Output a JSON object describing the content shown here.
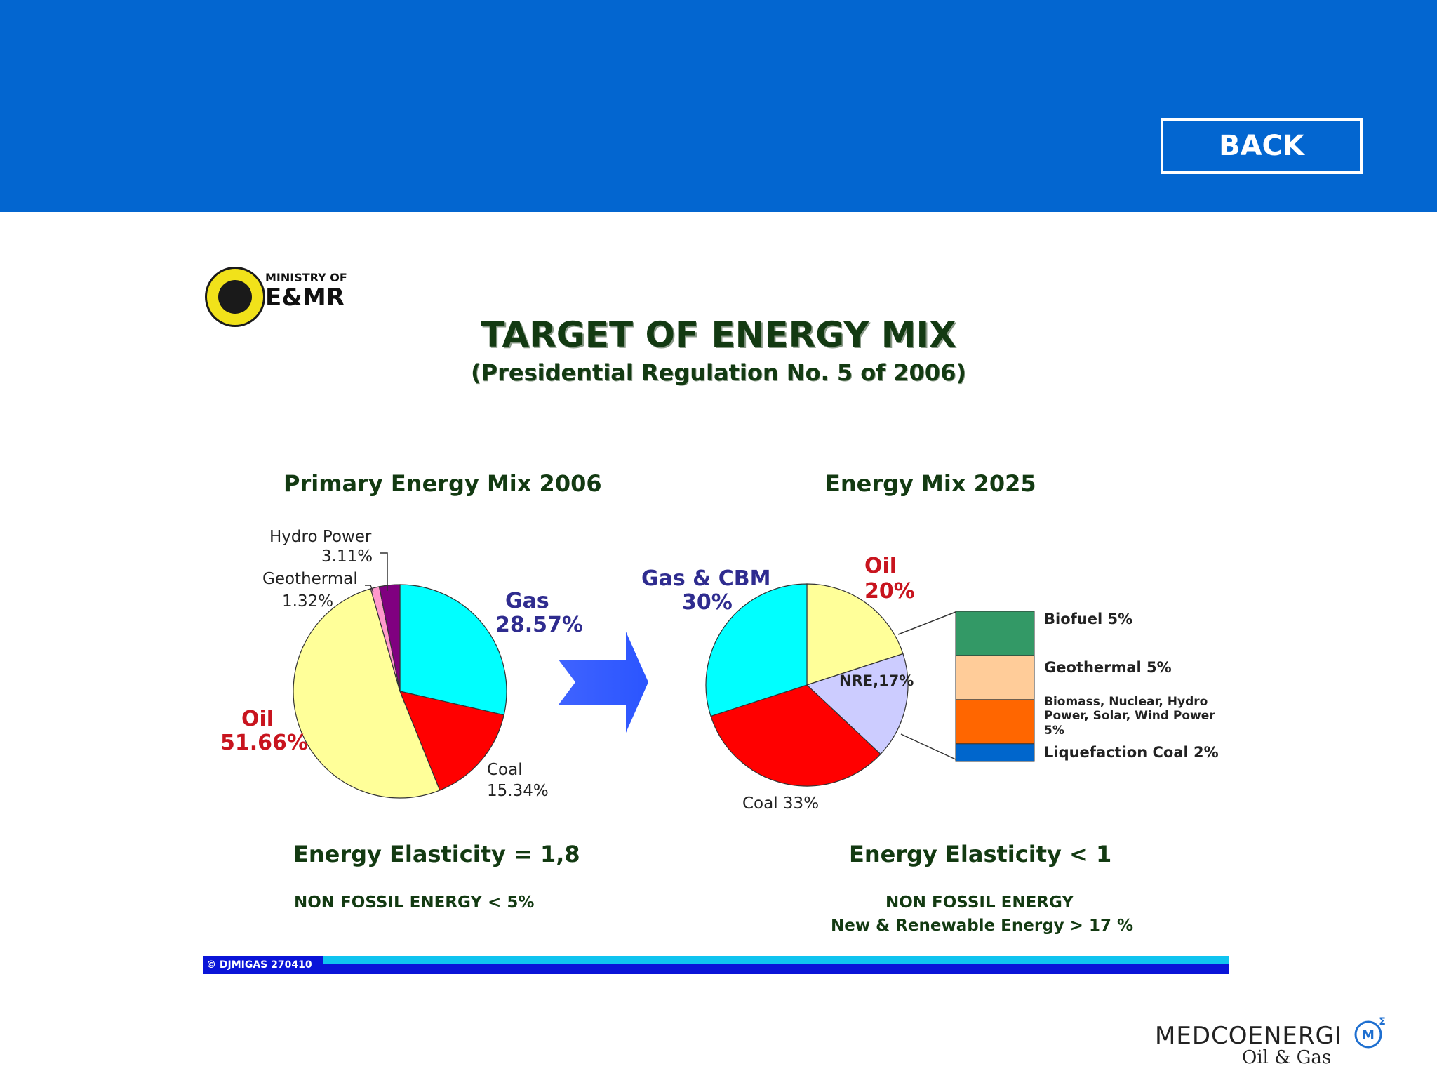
{
  "header": {
    "back_label": "BACK"
  },
  "logo": {
    "line1": "MINISTRY OF",
    "line2": "E&MR"
  },
  "title": "TARGET OF ENERGY MIX",
  "subtitle": "(Presidential Regulation No. 5 of 2006)",
  "chart_data": [
    {
      "type": "pie",
      "title": "Primary Energy Mix 2006",
      "slices": [
        {
          "name": "Gas",
          "value": 28.57,
          "label": "28.57%",
          "color": "#00ffff"
        },
        {
          "name": "Coal",
          "value": 15.34,
          "label": "15.34%",
          "color": "#ff0000"
        },
        {
          "name": "Oil",
          "value": 51.66,
          "label": "51.66%",
          "color": "#ffff99"
        },
        {
          "name": "Geothermal",
          "value": 1.32,
          "label": "1.32%",
          "color": "#ff99cc"
        },
        {
          "name": "Hydro Power",
          "value": 3.11,
          "label": "3.11%",
          "color": "#800080"
        }
      ]
    },
    {
      "type": "pie",
      "title": "Energy Mix 2025",
      "slices": [
        {
          "name": "Oil",
          "value": 20,
          "label": "20%",
          "color": "#ffff99"
        },
        {
          "name": "NRE",
          "value": 17,
          "label": "NRE,17%",
          "color": "#ccccff"
        },
        {
          "name": "Coal",
          "value": 33,
          "label": "Coal 33%",
          "color": "#ff0000"
        },
        {
          "name": "Gas & CBM",
          "value": 30,
          "label": "30%",
          "color": "#00ffff"
        }
      ],
      "nre_breakdown": [
        {
          "label": "Biofuel 5%",
          "value": 5,
          "color": "#339966"
        },
        {
          "label": "Geothermal 5%",
          "value": 5,
          "color": "#ffcc99"
        },
        {
          "label": "Biomass, Nuclear, Hydro Power, Solar, Wind Power 5%",
          "value": 5,
          "color": "#ff6600"
        },
        {
          "label": "Liquefaction Coal 2%",
          "value": 2,
          "color": "#0066cc"
        }
      ]
    }
  ],
  "left": {
    "elasticity": "Energy Elasticity = 1,8",
    "nonfossil": "NON FOSSIL ENERGY  < 5%"
  },
  "right": {
    "elasticity": "Energy Elasticity < 1",
    "nonfossil_1": "NON FOSSIL ENERGY",
    "nonfossil_2": "New & Renewable Energy  >  17 %"
  },
  "footer": {
    "tag": "© DJMIGAS 270410"
  },
  "brand": {
    "name": "MEDCOENERGI",
    "sub": "Oil & Gas",
    "mark": "M"
  }
}
